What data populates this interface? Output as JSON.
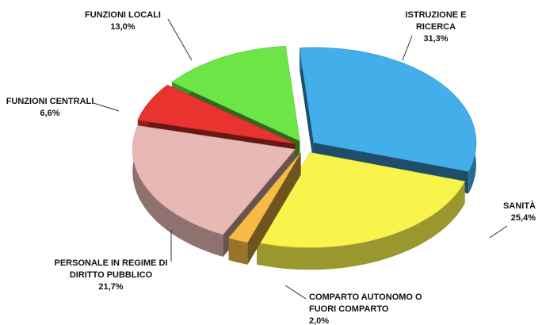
{
  "chart_data": {
    "type": "pie3d",
    "categories": [
      "ISTRUZIONE E RICERCA",
      "SANITÀ",
      "COMPARTO AUTONOMO O FUORI COMPARTO",
      "PERSONALE IN REGIME DI DIRITTO PUBBLICO",
      "FUNZIONI CENTRALI",
      "FUNZIONI LOCALI"
    ],
    "values": [
      31.3,
      25.4,
      2.0,
      21.7,
      6.6,
      13.0
    ],
    "value_labels": [
      "31,3%",
      "25,4%",
      "2,0%",
      "21,7%",
      "6,6%",
      "13,0%"
    ],
    "colors": [
      "#42aeea",
      "#f8f44c",
      "#f6bb44",
      "#e7b8b4",
      "#e8332e",
      "#6ce646"
    ]
  }
}
